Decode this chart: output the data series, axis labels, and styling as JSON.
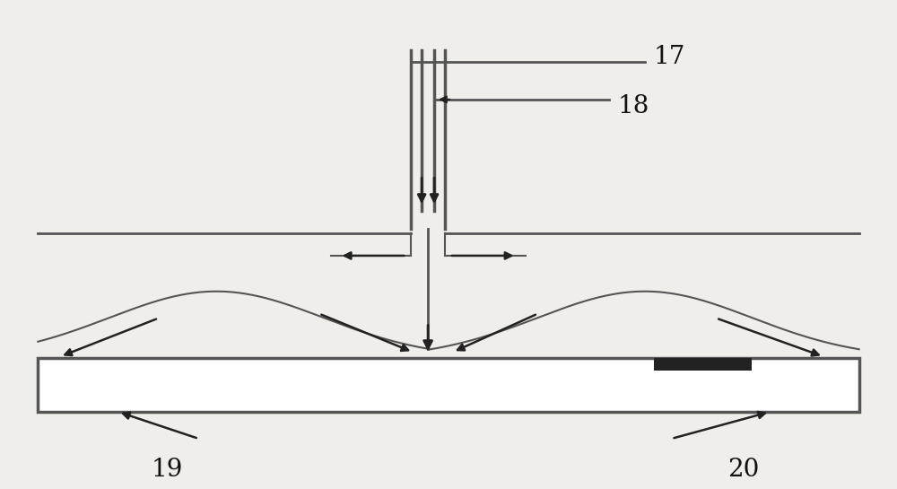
{
  "bg_color": "#f0eeeb",
  "line_color": "#555555",
  "dark_color": "#222222",
  "label_color": "#111111",
  "figure_width": 10.0,
  "figure_height": 5.45,
  "label_fontsize": 20
}
